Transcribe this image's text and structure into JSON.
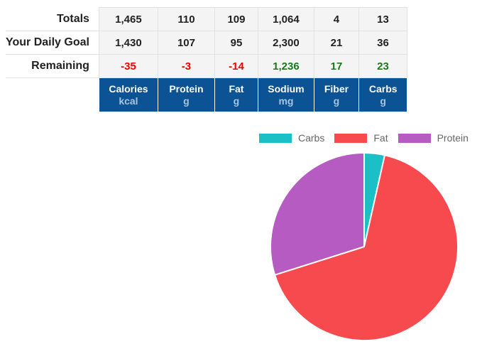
{
  "table": {
    "rows": [
      {
        "label": "Totals",
        "values": [
          "1,465",
          "110",
          "109",
          "1,064",
          "4",
          "13"
        ],
        "status": [
          "",
          "",
          "",
          "",
          "",
          ""
        ]
      },
      {
        "label": "Your Daily Goal",
        "values": [
          "1,430",
          "107",
          "95",
          "2,300",
          "21",
          "36"
        ],
        "status": [
          "",
          "",
          "",
          "",
          "",
          ""
        ]
      },
      {
        "label": "Remaining",
        "values": [
          "-35",
          "-3",
          "-14",
          "1,236",
          "17",
          "23"
        ],
        "status": [
          "neg",
          "neg",
          "neg",
          "pos",
          "pos",
          "pos"
        ]
      }
    ],
    "columns": [
      {
        "name": "Calories",
        "unit": "kcal"
      },
      {
        "name": "Protein",
        "unit": "g"
      },
      {
        "name": "Fat",
        "unit": "g"
      },
      {
        "name": "Sodium",
        "unit": "mg"
      },
      {
        "name": "Fiber",
        "unit": "g"
      },
      {
        "name": "Carbs",
        "unit": "g"
      }
    ]
  },
  "chart_data": {
    "type": "pie",
    "labels": [
      "Carbs",
      "Fat",
      "Protein"
    ],
    "values": [
      52,
      981,
      440
    ],
    "colors": [
      "#1bbfc6",
      "#f64a4e",
      "#b65bc1"
    ],
    "legend_position": "top"
  }
}
